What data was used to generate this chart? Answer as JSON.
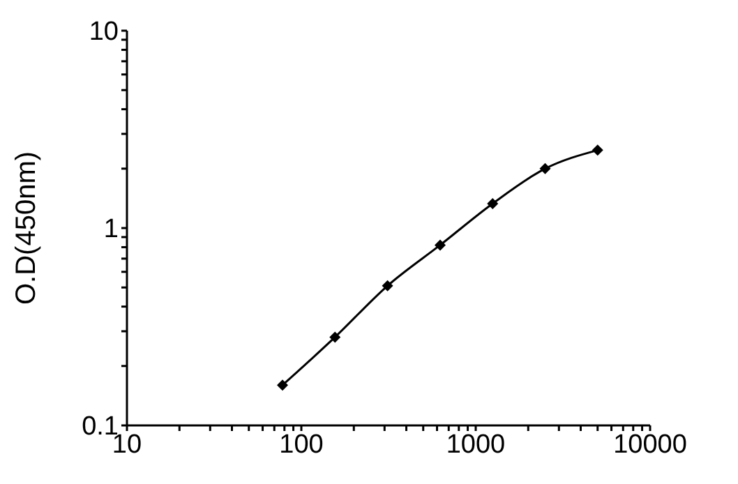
{
  "chart_data": {
    "type": "line",
    "ylabel": "O.D(450nm)",
    "x": [
      78,
      156,
      312,
      625,
      1250,
      2500,
      5000
    ],
    "series": [
      {
        "color": "#000000",
        "values": [
          0.16,
          0.28,
          0.51,
          0.82,
          1.33,
          2.0,
          2.48
        ]
      }
    ],
    "log": "xy",
    "marker": "diamond",
    "line_style": "solid",
    "grid": false,
    "legend": false,
    "xlim": [
      10,
      10000
    ],
    "xticks": [
      10,
      {
        "value": 20,
        "label": null
      },
      {
        "value": 30,
        "label": null
      },
      {
        "value": 40,
        "label": null
      },
      {
        "value": 50,
        "label": null
      },
      {
        "value": 60,
        "label": null
      },
      {
        "value": 70,
        "label": null
      },
      {
        "value": 80,
        "label": null
      },
      {
        "value": 90,
        "label": null
      },
      100,
      {
        "value": 200,
        "label": null
      },
      {
        "value": 300,
        "label": null
      },
      {
        "value": 400,
        "label": null
      },
      {
        "value": 500,
        "label": null
      },
      {
        "value": 600,
        "label": null
      },
      {
        "value": 700,
        "label": null
      },
      {
        "value": 800,
        "label": null
      },
      {
        "value": 900,
        "label": null
      },
      1000,
      {
        "value": 2000,
        "label": null
      },
      {
        "value": 3000,
        "label": null
      },
      {
        "value": 4000,
        "label": null
      },
      {
        "value": 5000,
        "label": null
      },
      {
        "value": 6000,
        "label": null
      },
      {
        "value": 7000,
        "label": null
      },
      {
        "value": 8000,
        "label": null
      },
      {
        "value": 9000,
        "label": null
      },
      10000
    ],
    "ylim": [
      0.1,
      10
    ],
    "yticks": [
      0.1,
      {
        "value": 0.2,
        "label": null
      },
      {
        "value": 0.3,
        "label": null
      },
      {
        "value": 0.4,
        "label": null
      },
      {
        "value": 0.5,
        "label": null
      },
      {
        "value": 0.6,
        "label": null
      },
      {
        "value": 0.7,
        "label": null
      },
      {
        "value": 0.8,
        "label": null
      },
      {
        "value": 0.9,
        "label": null
      },
      1,
      {
        "value": 2,
        "label": null
      },
      {
        "value": 3,
        "label": null
      },
      {
        "value": 4,
        "label": null
      },
      {
        "value": 5,
        "label": null
      },
      {
        "value": 6,
        "label": null
      },
      {
        "value": 7,
        "label": null
      },
      {
        "value": 8,
        "label": null
      },
      {
        "value": 9,
        "label": null
      },
      10
    ]
  }
}
